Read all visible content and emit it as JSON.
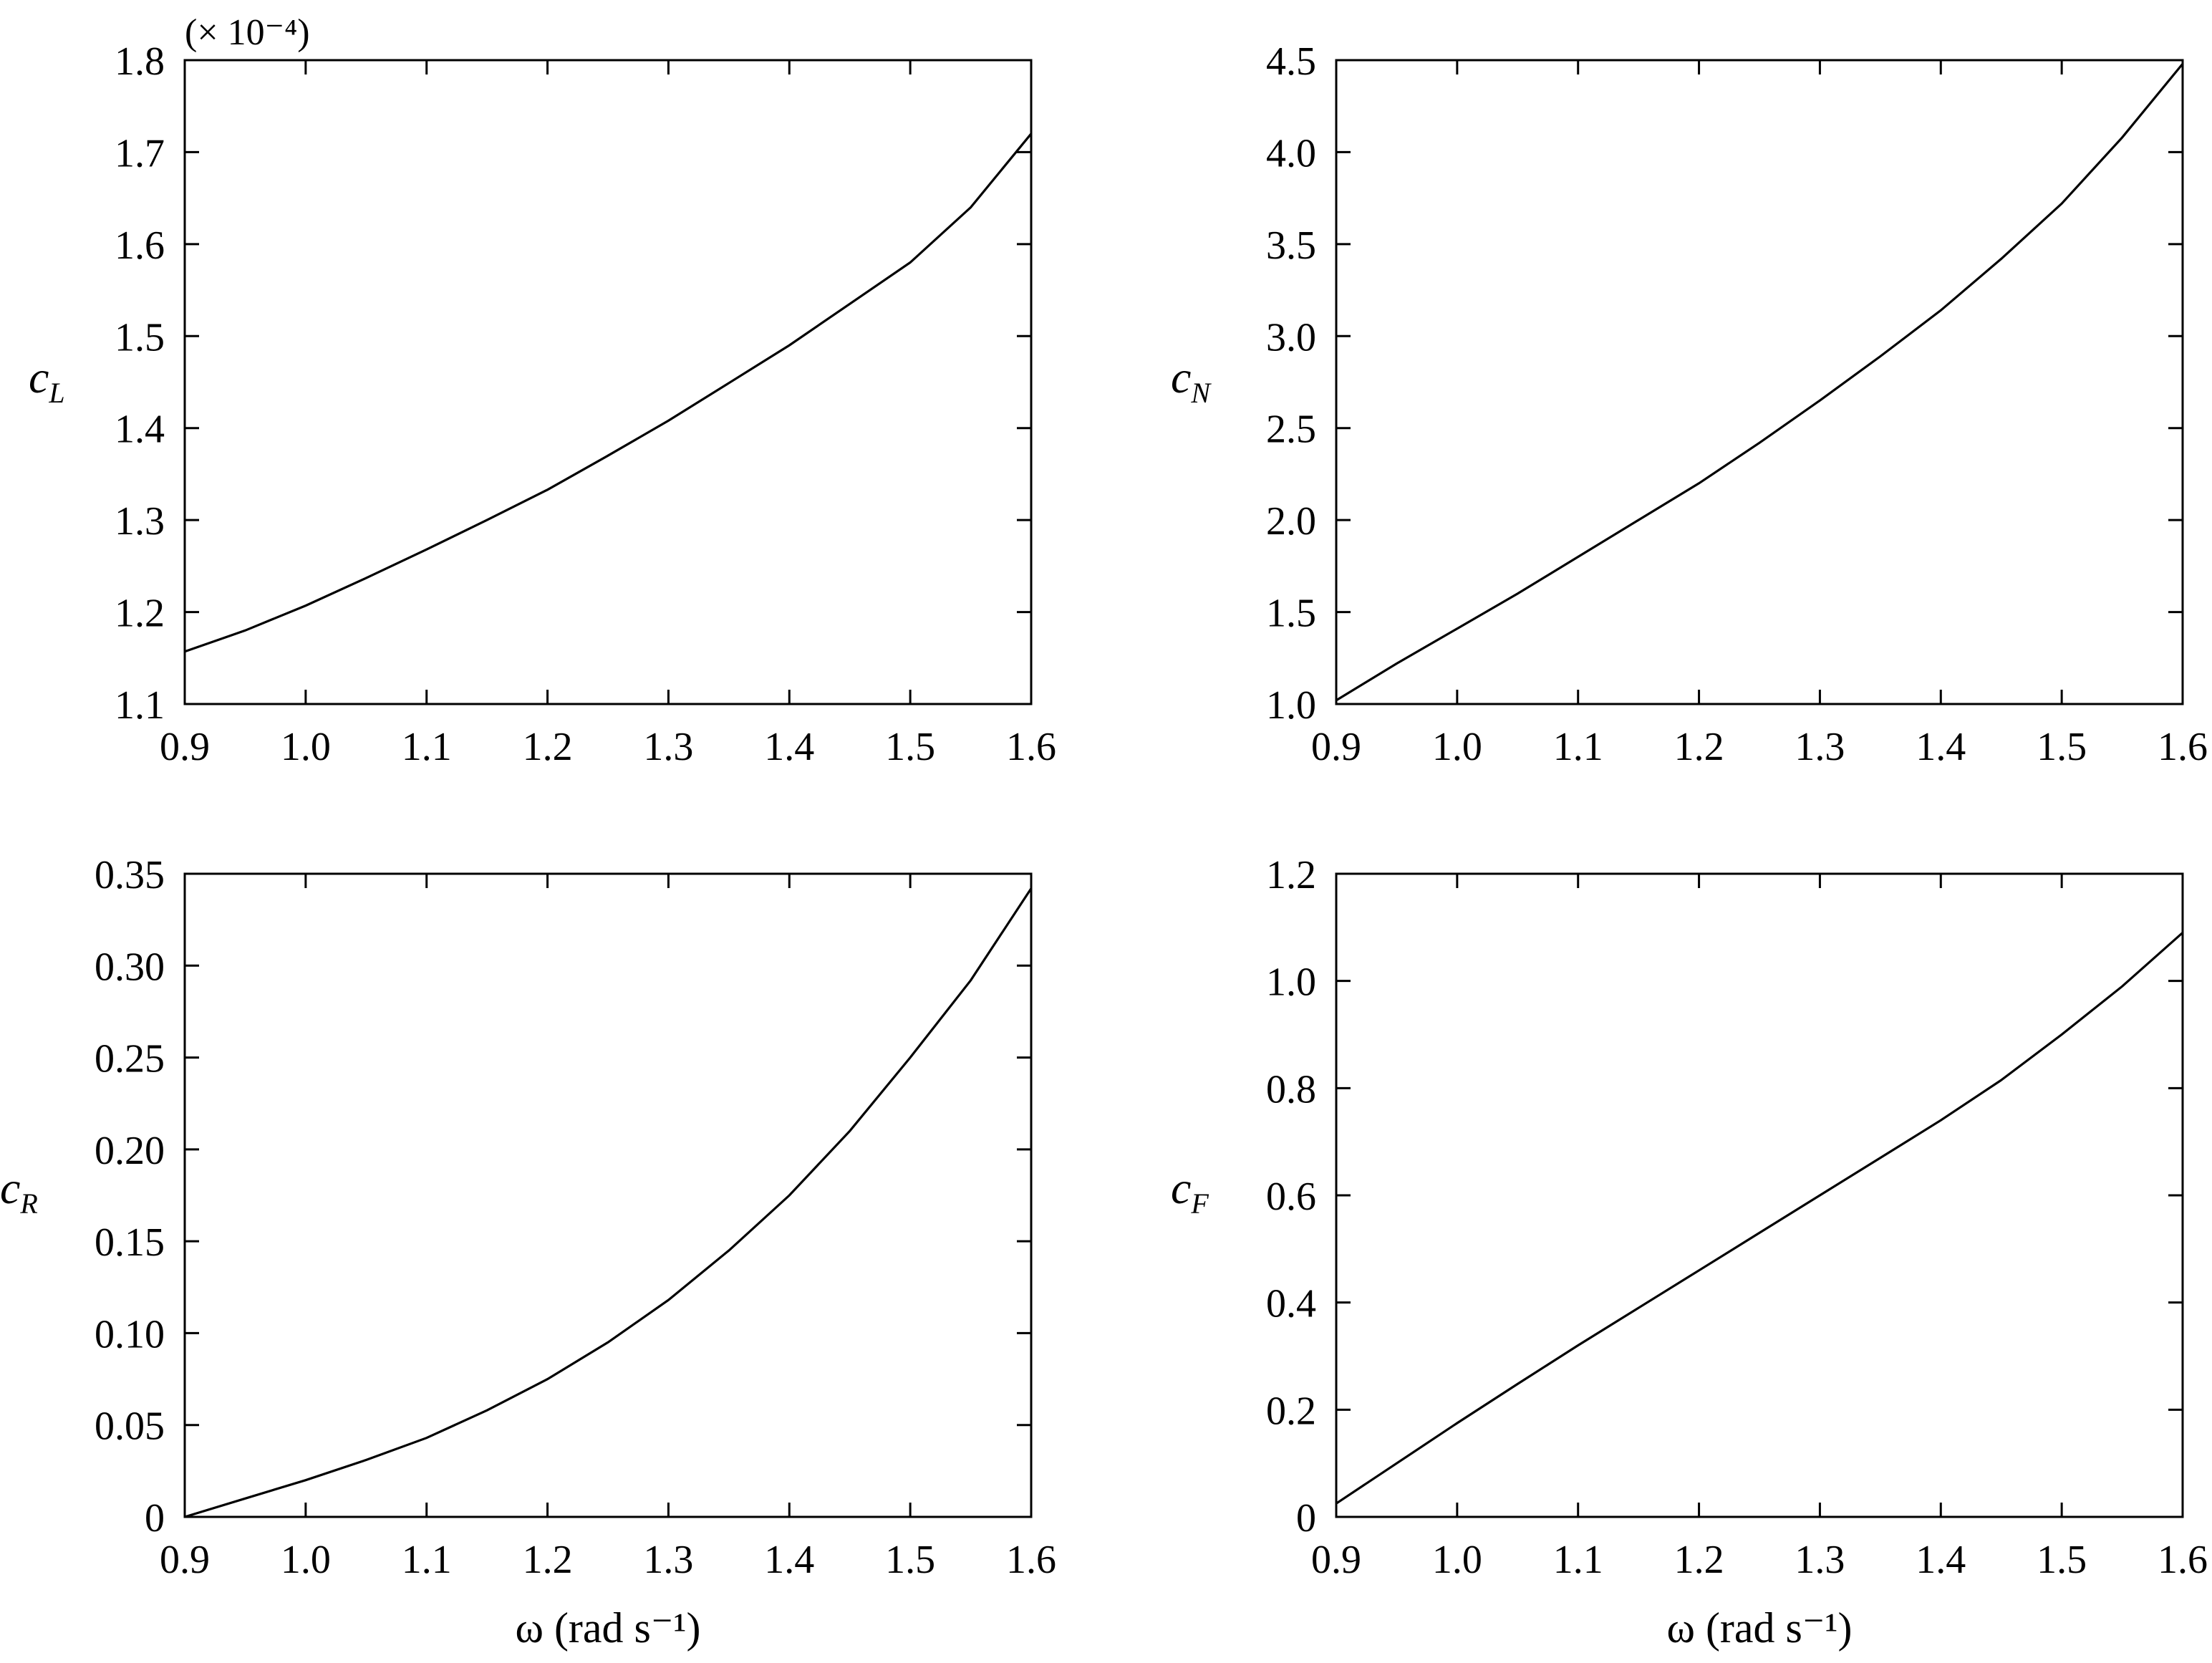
{
  "chart_data": [
    {
      "id": "cL",
      "type": "line",
      "ylabel_main": "c",
      "ylabel_sub": "L",
      "xlabel": "",
      "exponent_note": "(× 10⁻⁴)",
      "xlim": [
        0.9,
        1.6
      ],
      "ylim": [
        1.1,
        1.8
      ],
      "xticks": [
        0.9,
        1.0,
        1.1,
        1.2,
        1.3,
        1.4,
        1.5,
        1.6
      ],
      "xtick_labels": [
        "0.9",
        "1.0",
        "1.1",
        "1.2",
        "1.3",
        "1.4",
        "1.5",
        "1.6"
      ],
      "yticks": [
        1.1,
        1.2,
        1.3,
        1.4,
        1.5,
        1.6,
        1.7,
        1.8
      ],
      "ytick_labels": [
        "1.1",
        "1.2",
        "1.3",
        "1.4",
        "1.5",
        "1.6",
        "1.7",
        "1.8"
      ],
      "grid": false,
      "series": [
        {
          "x": [
            0.9,
            0.95,
            1.0,
            1.05,
            1.1,
            1.15,
            1.2,
            1.25,
            1.3,
            1.35,
            1.4,
            1.45,
            1.5,
            1.55,
            1.6
          ],
          "y": [
            1.157,
            1.18,
            1.207,
            1.237,
            1.268,
            1.3,
            1.333,
            1.37,
            1.408,
            1.449,
            1.49,
            1.535,
            1.58,
            1.64,
            1.72
          ]
        }
      ]
    },
    {
      "id": "cN",
      "type": "line",
      "ylabel_main": "c",
      "ylabel_sub": "N",
      "xlabel": "",
      "exponent_note": "",
      "xlim": [
        0.9,
        1.6
      ],
      "ylim": [
        1.0,
        4.5
      ],
      "xticks": [
        0.9,
        1.0,
        1.1,
        1.2,
        1.3,
        1.4,
        1.5,
        1.6
      ],
      "xtick_labels": [
        "0.9",
        "1.0",
        "1.1",
        "1.2",
        "1.3",
        "1.4",
        "1.5",
        "1.6"
      ],
      "yticks": [
        1.0,
        1.5,
        2.0,
        2.5,
        3.0,
        3.5,
        4.0,
        4.5
      ],
      "ytick_labels": [
        "1.0",
        "1.5",
        "2.0",
        "2.5",
        "3.0",
        "3.5",
        "4.0",
        "4.5"
      ],
      "grid": false,
      "series": [
        {
          "x": [
            0.9,
            0.95,
            1.0,
            1.05,
            1.1,
            1.15,
            1.2,
            1.25,
            1.3,
            1.35,
            1.4,
            1.45,
            1.5,
            1.55,
            1.6
          ],
          "y": [
            1.02,
            1.22,
            1.41,
            1.6,
            1.8,
            2.0,
            2.2,
            2.42,
            2.65,
            2.89,
            3.14,
            3.42,
            3.72,
            4.08,
            4.48
          ]
        }
      ]
    },
    {
      "id": "cR",
      "type": "line",
      "ylabel_main": "c",
      "ylabel_sub": "R",
      "xlabel": "ω (rad s⁻¹)",
      "exponent_note": "",
      "xlim": [
        0.9,
        1.6
      ],
      "ylim": [
        0,
        0.35
      ],
      "xticks": [
        0.9,
        1.0,
        1.1,
        1.2,
        1.3,
        1.4,
        1.5,
        1.6
      ],
      "xtick_labels": [
        "0.9",
        "1.0",
        "1.1",
        "1.2",
        "1.3",
        "1.4",
        "1.5",
        "1.6"
      ],
      "yticks": [
        0,
        0.05,
        0.1,
        0.15,
        0.2,
        0.25,
        0.3,
        0.35
      ],
      "ytick_labels": [
        "0",
        "0.05",
        "0.10",
        "0.15",
        "0.20",
        "0.25",
        "0.30",
        "0.35"
      ],
      "grid": false,
      "series": [
        {
          "x": [
            0.9,
            0.95,
            1.0,
            1.05,
            1.1,
            1.15,
            1.2,
            1.25,
            1.3,
            1.35,
            1.4,
            1.45,
            1.5,
            1.55,
            1.6
          ],
          "y": [
            0.0,
            0.01,
            0.02,
            0.031,
            0.043,
            0.058,
            0.075,
            0.095,
            0.118,
            0.145,
            0.175,
            0.21,
            0.25,
            0.292,
            0.342
          ]
        }
      ]
    },
    {
      "id": "cF",
      "type": "line",
      "ylabel_main": "c",
      "ylabel_sub": "F",
      "xlabel": "ω (rad s⁻¹)",
      "exponent_note": "",
      "xlim": [
        0.9,
        1.6
      ],
      "ylim": [
        0,
        1.2
      ],
      "xticks": [
        0.9,
        1.0,
        1.1,
        1.2,
        1.3,
        1.4,
        1.5,
        1.6
      ],
      "xtick_labels": [
        "0.9",
        "1.0",
        "1.1",
        "1.2",
        "1.3",
        "1.4",
        "1.5",
        "1.6"
      ],
      "yticks": [
        0,
        0.2,
        0.4,
        0.6,
        0.8,
        1.0,
        1.2
      ],
      "ytick_labels": [
        "0",
        "0.2",
        "0.4",
        "0.6",
        "0.8",
        "1.0",
        "1.2"
      ],
      "grid": false,
      "series": [
        {
          "x": [
            0.9,
            0.95,
            1.0,
            1.05,
            1.1,
            1.15,
            1.2,
            1.25,
            1.3,
            1.35,
            1.4,
            1.45,
            1.5,
            1.55,
            1.6
          ],
          "y": [
            0.025,
            0.1,
            0.175,
            0.248,
            0.32,
            0.39,
            0.46,
            0.53,
            0.6,
            0.67,
            0.74,
            0.815,
            0.9,
            0.99,
            1.09
          ]
        }
      ]
    }
  ]
}
